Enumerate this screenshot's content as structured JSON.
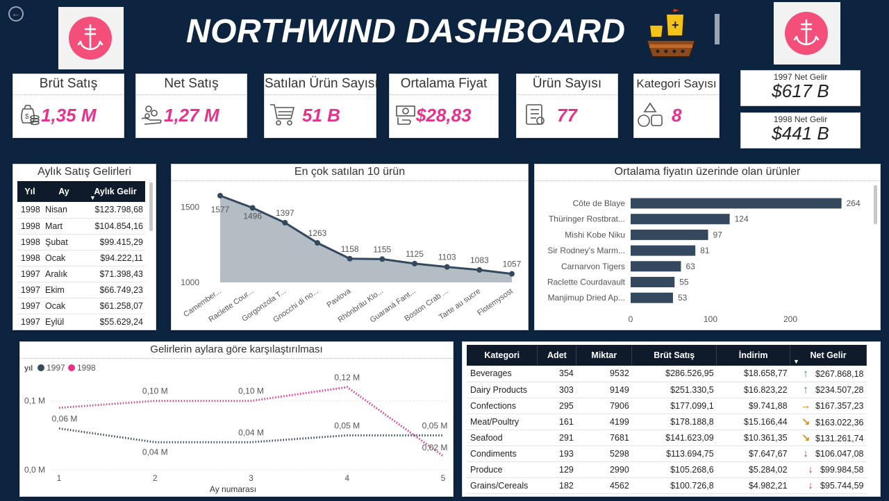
{
  "header": {
    "title": "NORTHWIND DASHBOARD",
    "back_icon": "arrow-left-circle-icon"
  },
  "kpis": [
    {
      "id": "brut",
      "title": "Brüt Satış",
      "value": "1,35 M",
      "icon": "money-bag-icon"
    },
    {
      "id": "net",
      "title": "Net Satış",
      "value": "1,27 M",
      "icon": "money-hand-icon"
    },
    {
      "id": "satilan",
      "title": "Satılan Ürün Sayısı",
      "value": "51 B",
      "icon": "shopping-cart-icon"
    },
    {
      "id": "ortalama",
      "title": "Ortalama Fiyat",
      "value": "$28,83",
      "icon": "cash-hand-icon"
    },
    {
      "id": "urun",
      "title": "Ürün Sayısı",
      "value": "77",
      "icon": "checklist-icon"
    },
    {
      "id": "kategori",
      "title": "Kategori Sayısı",
      "value": "8",
      "icon": "shapes-icon"
    }
  ],
  "net_gelir": [
    {
      "label": "1997 Net Gelir",
      "value": "$617 B"
    },
    {
      "label": "1998 Net Gelir",
      "value": "$441 B"
    }
  ],
  "monthly": {
    "title": "Aylık Satış Gelirleri",
    "columns": [
      "Yıl",
      "Ay",
      "Aylık Gelir"
    ],
    "rows": [
      [
        "1998",
        "Nisan",
        "$123.798,68"
      ],
      [
        "1998",
        "Mart",
        "$104.854,16"
      ],
      [
        "1998",
        "Şubat",
        "$99.415,29"
      ],
      [
        "1998",
        "Ocak",
        "$94.222,11"
      ],
      [
        "1997",
        "Aralık",
        "$71.398,43"
      ],
      [
        "1997",
        "Ekim",
        "$66.749,23"
      ],
      [
        "1997",
        "Ocak",
        "$61.258,07"
      ],
      [
        "1997",
        "Eylül",
        "$55.629,24"
      ]
    ]
  },
  "chart_data": [
    {
      "type": "area",
      "title": "En çok satılan 10 ürün",
      "categories": [
        "Camember...",
        "Raclette Cour...",
        "Gorgonzola T...",
        "Gnocchi di no...",
        "Pavlova",
        "Rhönbräu Klo...",
        "Guaraná Fant...",
        "Boston Crab ...",
        "Tarte au sucre",
        "Flotemysost"
      ],
      "values": [
        1577,
        1496,
        1397,
        1263,
        1158,
        1155,
        1125,
        1103,
        1083,
        1057
      ],
      "y_ticks": [
        1000,
        1500
      ],
      "ylim": [
        1000,
        1600
      ],
      "color": "#34495e",
      "fill": "#b4bcc4"
    },
    {
      "type": "bar",
      "orientation": "horizontal",
      "title": "Ortalama fiyatın üzerinde olan ürünler",
      "categories": [
        "Côte de Blaye",
        "Thüringer Rostbrat...",
        "Mishi Kobe Niku",
        "Sir Rodney's Marm...",
        "Carnarvon Tigers",
        "Raclette Courdavault",
        "Manjimup Dried Ap..."
      ],
      "values": [
        264,
        124,
        97,
        81,
        63,
        55,
        53
      ],
      "x_ticks": [
        0,
        100,
        200
      ],
      "xlim": [
        0,
        300
      ],
      "color": "#34495e"
    },
    {
      "type": "line",
      "title": "Gelirlerin aylara göre karşılaştırılması",
      "legend_title": "yıl",
      "xlabel": "Ay numarası",
      "x": [
        1,
        2,
        3,
        4,
        5
      ],
      "y_ticks": [
        0,
        0.1
      ],
      "y_tick_labels": [
        "0,0 M",
        "0,1 M"
      ],
      "ylim": [
        0,
        0.14
      ],
      "series": [
        {
          "name": "1997",
          "color": "#34495e",
          "values": [
            0.06,
            0.04,
            0.04,
            0.05,
            0.05
          ],
          "labels": [
            "0,06 M",
            "0,04 M",
            "0,04 M",
            "0,05 M",
            "0,05 M"
          ]
        },
        {
          "name": "1998",
          "color": "#e8318a",
          "values": [
            0.09,
            0.1,
            0.1,
            0.12,
            0.02
          ],
          "labels": [
            "",
            "0,10 M",
            "0,10 M",
            "0,12 M",
            "0,02 M"
          ]
        }
      ]
    }
  ],
  "category_table": {
    "columns": [
      "Kategori",
      "Adet",
      "Miktar",
      "Brüt Satış",
      "İndirim",
      "Net Gelir"
    ],
    "rows": [
      {
        "kategori": "Beverages",
        "adet": "354",
        "miktar": "9532",
        "brut": "$286.526,95",
        "indirim": "$18.658,77",
        "trend": "up",
        "net": "$267.868,18"
      },
      {
        "kategori": "Dairy Products",
        "adet": "303",
        "miktar": "9149",
        "brut": "$251.330,5",
        "indirim": "$16.823,22",
        "trend": "up",
        "net": "$234.507,28"
      },
      {
        "kategori": "Confections",
        "adet": "295",
        "miktar": "7906",
        "brut": "$177.099,1",
        "indirim": "$9.741,88",
        "trend": "right",
        "net": "$167.357,23"
      },
      {
        "kategori": "Meat/Poultry",
        "adet": "161",
        "miktar": "4199",
        "brut": "$178.188,8",
        "indirim": "$15.166,44",
        "trend": "down-right",
        "net": "$163.022,36"
      },
      {
        "kategori": "Seafood",
        "adet": "291",
        "miktar": "7681",
        "brut": "$141.623,09",
        "indirim": "$10.361,35",
        "trend": "down-right",
        "net": "$131.261,74"
      },
      {
        "kategori": "Condiments",
        "adet": "193",
        "miktar": "5298",
        "brut": "$113.694,75",
        "indirim": "$7.647,67",
        "trend": "down",
        "net": "$106.047,08"
      },
      {
        "kategori": "Produce",
        "adet": "129",
        "miktar": "2990",
        "brut": "$105.268,6",
        "indirim": "$5.284,02",
        "trend": "down",
        "net": "$99.984,58"
      },
      {
        "kategori": "Grains/Cereals",
        "adet": "182",
        "miktar": "4562",
        "brut": "$100.726,8",
        "indirim": "$4.982,21",
        "trend": "down",
        "net": "$95.744,59"
      }
    ],
    "trend_colors": {
      "up": "#3e8e5a",
      "right": "#d68a1c",
      "down-right": "#d68a1c",
      "down": "#c0392b"
    }
  }
}
